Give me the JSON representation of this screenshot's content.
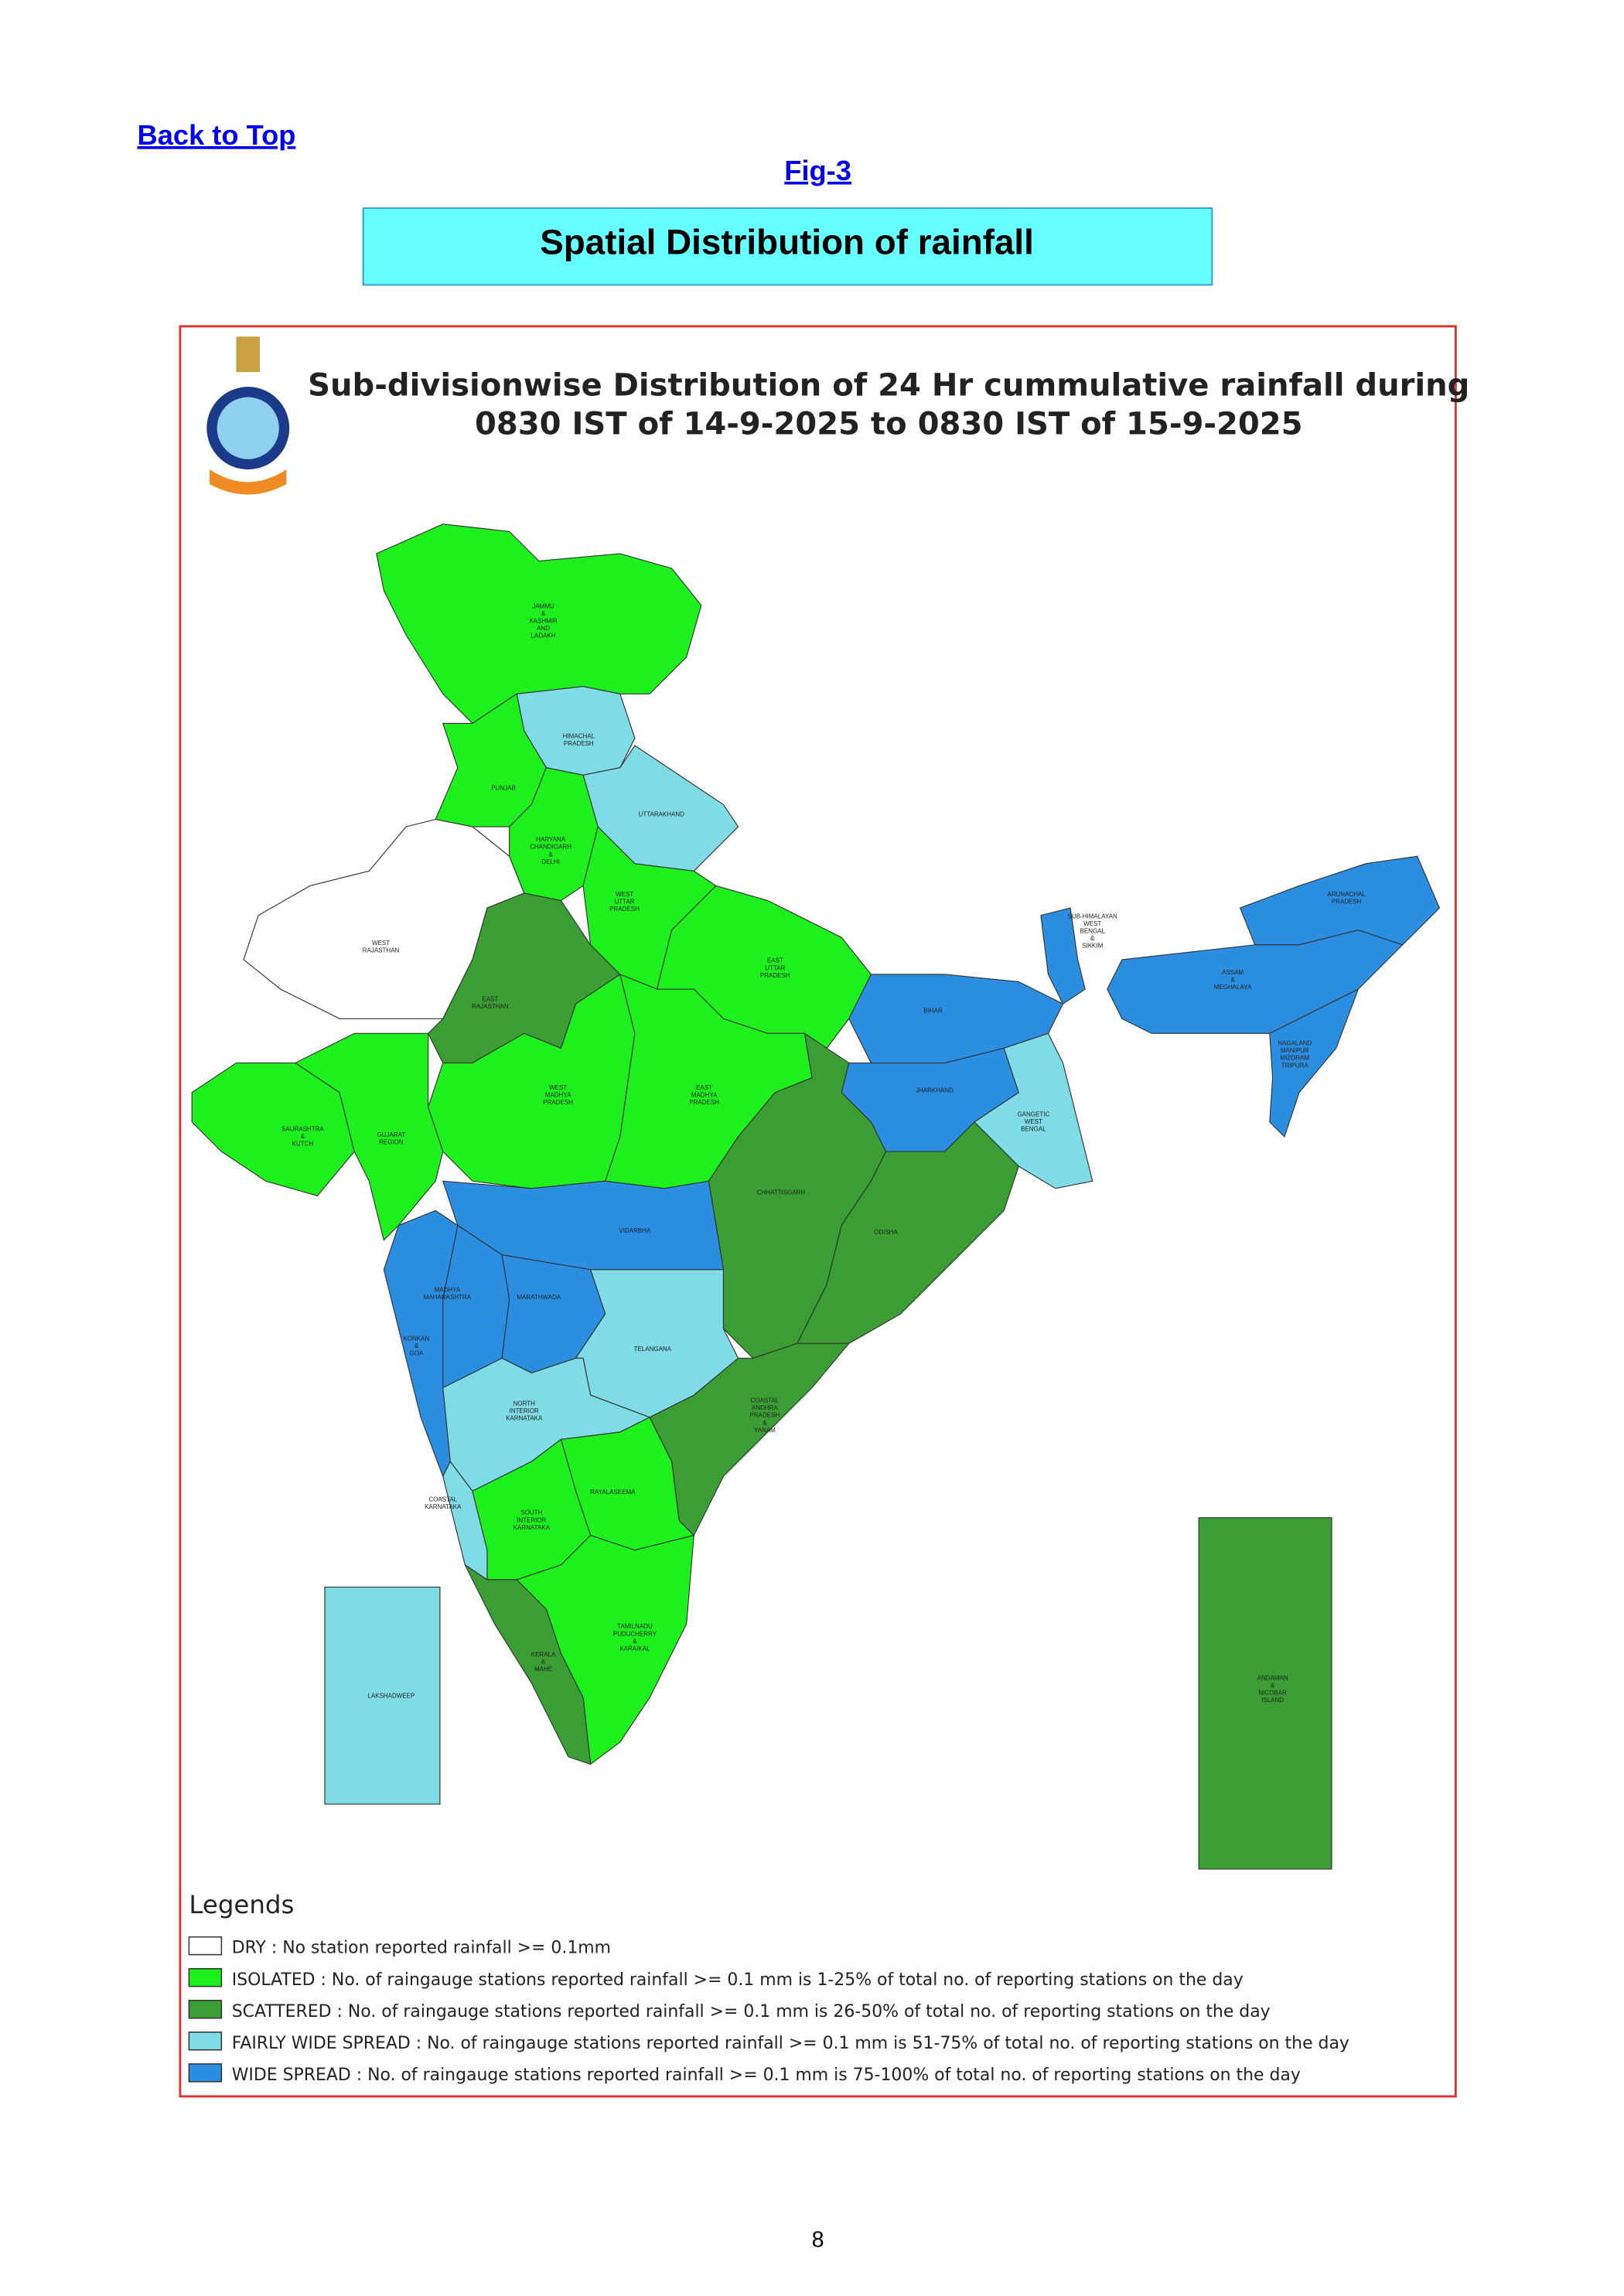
{
  "header": {
    "back_to_top": "Back to Top",
    "fig_label": "Fig-3",
    "title": "Spatial Distribution of rainfall"
  },
  "map": {
    "title_lines": [
      "Sub-divisionwise Distribution of 24 Hr cummulative rainfall during",
      "0830 IST of 14-9-2025 to 0830 IST of 15-9-2025"
    ],
    "regions": [
      {
        "lines": [
          "JAMMU",
          "&",
          "KASHMIR",
          "AND",
          "LADAKH"
        ],
        "color": "#1ef01e"
      },
      {
        "lines": [
          "HIMACHAL",
          "PRADESH"
        ],
        "color": "#7fdbe6"
      },
      {
        "lines": [
          "PUNJAB"
        ],
        "color": "#1ef01e"
      },
      {
        "lines": [
          "UTTARAKHAND"
        ],
        "color": "#7fdbe6"
      },
      {
        "lines": [
          "HARYANA",
          "CHANDIGARH",
          "&",
          "DELHI"
        ],
        "color": "#1ef01e"
      },
      {
        "lines": [
          "WEST",
          "UTTAR",
          "PRADESH"
        ],
        "color": "#1ef01e"
      },
      {
        "lines": [
          "WEST",
          "RAJASTHAN"
        ],
        "color": "#ffffff"
      },
      {
        "lines": [
          "EAST",
          "UTTAR",
          "PRADESH"
        ],
        "color": "#3a9e34"
      },
      {
        "lines": [
          "EAST",
          "RAJASTHAN"
        ],
        "color": "#1ef01e"
      },
      {
        "lines": [
          "BIHAR"
        ],
        "color": "#2b8ee0"
      },
      {
        "lines": [
          "SUB-HIMALAYAN",
          "WEST",
          "BENGAL",
          "&",
          "SIKKIM"
        ],
        "color": "#2b8ee0"
      },
      {
        "lines": [
          "ARUNACHAL",
          "PRADESH"
        ],
        "color": "#2b8ee0"
      },
      {
        "lines": [
          "ASSAM",
          "&",
          "MEGHALAYA"
        ],
        "color": "#2b8ee0"
      },
      {
        "lines": [
          "NAGALAND",
          "MANIPUR",
          "MIZORAM",
          "TRIPURA"
        ],
        "color": "#2b8ee0"
      },
      {
        "lines": [
          "WEST",
          "MADHYA",
          "PRADESH"
        ],
        "color": "#1ef01e"
      },
      {
        "lines": [
          "EAST",
          "MADHYA",
          "PRADESH"
        ],
        "color": "#1ef01e"
      },
      {
        "lines": [
          "JHARKHAND"
        ],
        "color": "#2b8ee0"
      },
      {
        "lines": [
          "GANGETIC",
          "WEST",
          "BENGAL"
        ],
        "color": "#7fdbe6"
      },
      {
        "lines": [
          "SAURASHTRA",
          "&",
          "KUTCH"
        ],
        "color": "#1ef01e"
      },
      {
        "lines": [
          "GUJARAT",
          "REGION"
        ],
        "color": "#1ef01e"
      },
      {
        "lines": [
          "CHHATTISGARH"
        ],
        "color": "#3a9e34"
      },
      {
        "lines": [
          "ODISHA"
        ],
        "color": "#3a9e34"
      },
      {
        "lines": [
          "VIDARBHA"
        ],
        "color": "#2b8ee0"
      },
      {
        "lines": [
          "MADHYA",
          "MAHARASHTRA"
        ],
        "color": "#2b8ee0"
      },
      {
        "lines": [
          "MARATHWADA"
        ],
        "color": "#2b8ee0"
      },
      {
        "lines": [
          "KONKAN",
          "&",
          "GOA"
        ],
        "color": "#2b8ee0"
      },
      {
        "lines": [
          "TELANGANA"
        ],
        "color": "#7fdbe6"
      },
      {
        "lines": [
          "NORTH",
          "INTERIOR",
          "KARNATAKA"
        ],
        "color": "#7fdbe6"
      },
      {
        "lines": [
          "COASTAL",
          "ANDHRA",
          "PRADESH",
          "&",
          "YANAM"
        ],
        "color": "#3a9e34"
      },
      {
        "lines": [
          "COASTAL",
          "KARNATAKA"
        ],
        "color": "#7fdbe6"
      },
      {
        "lines": [
          "RAYALASEEMA"
        ],
        "color": "#1ef01e"
      },
      {
        "lines": [
          "SOUTH",
          "INTERIOR",
          "KARNATAKA"
        ],
        "color": "#1ef01e"
      },
      {
        "lines": [
          "TAMILNADU",
          "PUDUCHERRY",
          "&",
          "KARAIKAL"
        ],
        "color": "#1ef01e"
      },
      {
        "lines": [
          "KERALA",
          "&",
          "MAHE"
        ],
        "color": "#3a9e34"
      },
      {
        "lines": [
          "LAKSHADWEEP"
        ],
        "color": "#7fdbe6"
      },
      {
        "lines": [
          "ANDAMAN",
          "&",
          "NICOBAR",
          "ISLAND"
        ],
        "color": "#3a9e34"
      }
    ],
    "legend": {
      "title": "Legends",
      "items": [
        {
          "label": "DRY : No station reported rainfall >= 0.1mm",
          "color": "#ffffff"
        },
        {
          "label": "ISOLATED : No. of raingauge stations reported rainfall >= 0.1 mm is 1-25% of total no. of reporting stations on the day",
          "color": "#1ef01e"
        },
        {
          "label": "SCATTERED : No. of raingauge stations reported rainfall >= 0.1 mm is 26-50% of total no. of reporting stations on the day",
          "color": "#3a9e34"
        },
        {
          "label": "FAIRLY WIDE SPREAD : No. of raingauge stations reported rainfall >= 0.1 mm is 51-75% of total no. of reporting stations on the day",
          "color": "#7fdbe6"
        },
        {
          "label": "WIDE SPREAD : No. of raingauge stations reported rainfall >= 0.1 mm is 75-100% of total no. of reporting stations on the day",
          "color": "#2b8ee0"
        }
      ]
    }
  },
  "footer": {
    "page_number": "8"
  }
}
